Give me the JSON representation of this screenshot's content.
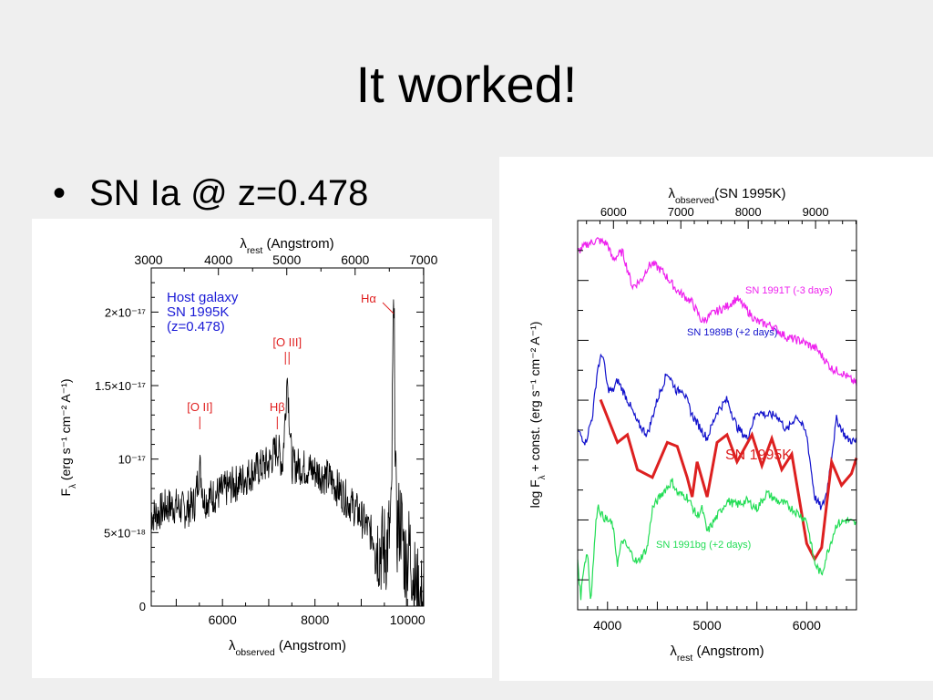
{
  "slide": {
    "title": "It worked!",
    "bullet_marker": "•",
    "bullet_text": "SN Ia @ z=0.478"
  },
  "chart_data": [
    {
      "type": "line",
      "top_axis": {
        "label_main": "λ",
        "label_sub": "rest",
        "label_rest": " (Angstrom)",
        "ticks": [
          3000,
          4000,
          5000,
          6000,
          7000
        ]
      },
      "x_axis": {
        "label_main": "λ",
        "label_sub": "observed",
        "label_rest": " (Angstrom)",
        "ticks": [
          6000,
          8000,
          10000
        ],
        "range": [
          4460,
          10350
        ]
      },
      "y_axis": {
        "label_main": "F",
        "label_sub": "λ",
        "label_rest": " (erg s⁻¹ cm⁻² A⁻¹)",
        "ticks": [
          {
            "value": 0,
            "label": "0"
          },
          {
            "value": 5e-18,
            "label": "5×10⁻¹⁸"
          },
          {
            "value": 1e-17,
            "label": "10⁻¹⁷"
          },
          {
            "value": 1.5e-17,
            "label": "1.5×10⁻¹⁷"
          },
          {
            "value": 2e-17,
            "label": "2×10⁻¹⁷"
          }
        ],
        "range": [
          0,
          2.3e-17
        ]
      },
      "legend": {
        "lines": [
          "Host galaxy",
          "SN 1995K",
          "(z=0.478)"
        ],
        "color": "#1a1ad6"
      },
      "annotations": [
        {
          "label": "[O II]",
          "x": 5510,
          "color": "#e02020"
        },
        {
          "label": "Hβ",
          "x": 7185,
          "color": "#e02020"
        },
        {
          "label": "[O III]",
          "x": 7400,
          "color": "#e02020"
        },
        {
          "label": "Hα",
          "x": 9700,
          "color": "#e02020"
        }
      ],
      "series": [
        {
          "color": "#000000",
          "points": [
            [
              4460,
              6.2e-18
            ],
            [
              4600,
              6.3e-18
            ],
            [
              4800,
              6.8e-18
            ],
            [
              5000,
              6.8e-18
            ],
            [
              5200,
              6.5e-18
            ],
            [
              5400,
              7e-18
            ],
            [
              5510,
              9.5e-18
            ],
            [
              5600,
              7.2e-18
            ],
            [
              5800,
              7.5e-18
            ],
            [
              6000,
              7.8e-18
            ],
            [
              6200,
              8.2e-18
            ],
            [
              6400,
              8.5e-18
            ],
            [
              6600,
              9e-18
            ],
            [
              6800,
              9.4e-18
            ],
            [
              7000,
              9.7e-18
            ],
            [
              7185,
              1.08e-17
            ],
            [
              7300,
              9.6e-18
            ],
            [
              7400,
              1.57e-17
            ],
            [
              7500,
              9.6e-18
            ],
            [
              7700,
              9.5e-18
            ],
            [
              7900,
              9.3e-18
            ],
            [
              8100,
              9e-18
            ],
            [
              8300,
              8.7e-18
            ],
            [
              8500,
              8e-18
            ],
            [
              8700,
              7.2e-18
            ],
            [
              8900,
              6.5e-18
            ],
            [
              9100,
              5.5e-18
            ],
            [
              9300,
              4.5e-18
            ],
            [
              9450,
              3.8e-18
            ],
            [
              9550,
              4e-18
            ],
            [
              9650,
              5.5e-18
            ],
            [
              9700,
              2.15e-17
            ],
            [
              9760,
              5e-18
            ],
            [
              9850,
              6e-18
            ],
            [
              9950,
              3e-18
            ],
            [
              10050,
              4e-18
            ],
            [
              10150,
              1.5e-18
            ],
            [
              10250,
              5e-19
            ],
            [
              10350,
              2e-19
            ]
          ]
        }
      ]
    },
    {
      "type": "line",
      "top_axis": {
        "label_main": "λ",
        "label_sub": "observed",
        "label_rest": "(SN 1995K)",
        "ticks": [
          6000,
          7000,
          8000,
          9000
        ]
      },
      "x_axis": {
        "label_main": "λ",
        "label_sub": "rest",
        "label_rest": " (Angstrom)",
        "ticks": [
          4000,
          5000,
          6000
        ],
        "range": [
          3700,
          6500
        ]
      },
      "y_axis": {
        "label_main": "log F",
        "label_sub": "λ",
        "label_rest": " + const. (erg s⁻¹ cm⁻² A⁻¹)",
        "range": [
          0,
          10
        ]
      },
      "series": [
        {
          "name": "SN 1991T (-3 days)",
          "color": "#ee22ee",
          "points": [
            [
              3700,
              9.2
            ],
            [
              3800,
              9.4
            ],
            [
              3900,
              9.5
            ],
            [
              4000,
              9.4
            ],
            [
              4050,
              9.0
            ],
            [
              4150,
              9.2
            ],
            [
              4250,
              8.3
            ],
            [
              4350,
              8.5
            ],
            [
              4400,
              8.8
            ],
            [
              4450,
              8.9
            ],
            [
              4550,
              8.7
            ],
            [
              4700,
              8.2
            ],
            [
              4850,
              7.9
            ],
            [
              4950,
              7.4
            ],
            [
              5050,
              7.6
            ],
            [
              5200,
              7.8
            ],
            [
              5300,
              8.0
            ],
            [
              5400,
              7.7
            ],
            [
              5500,
              7.4
            ],
            [
              5650,
              7.3
            ],
            [
              5800,
              7.0
            ],
            [
              5950,
              6.9
            ],
            [
              6100,
              6.7
            ],
            [
              6250,
              6.2
            ],
            [
              6350,
              6.1
            ],
            [
              6500,
              5.8
            ]
          ]
        },
        {
          "name": "SN 1989B (+2 days)",
          "color": "#1111cc",
          "points": [
            [
              3700,
              4.6
            ],
            [
              3780,
              4.3
            ],
            [
              3850,
              5.0
            ],
            [
              3900,
              6.2
            ],
            [
              3950,
              6.6
            ],
            [
              4000,
              5.7
            ],
            [
              4050,
              5.6
            ],
            [
              4100,
              5.9
            ],
            [
              4200,
              5.4
            ],
            [
              4300,
              4.8
            ],
            [
              4400,
              4.5
            ],
            [
              4500,
              5.4
            ],
            [
              4600,
              6.1
            ],
            [
              4700,
              5.6
            ],
            [
              4750,
              5.7
            ],
            [
              4850,
              5.0
            ],
            [
              5000,
              4.4
            ],
            [
              5100,
              5.1
            ],
            [
              5200,
              5.4
            ],
            [
              5300,
              4.7
            ],
            [
              5400,
              4.4
            ],
            [
              5500,
              5.1
            ],
            [
              5600,
              5.0
            ],
            [
              5700,
              5.0
            ],
            [
              5800,
              4.6
            ],
            [
              5900,
              5.0
            ],
            [
              6000,
              4.5
            ],
            [
              6080,
              2.9
            ],
            [
              6150,
              2.6
            ],
            [
              6200,
              3.0
            ],
            [
              6300,
              4.9
            ],
            [
              6400,
              4.4
            ],
            [
              6500,
              4.3
            ]
          ]
        },
        {
          "name": "SN 1995K",
          "color": "#dd2020",
          "points": [
            [
              3930,
              5.4
            ],
            [
              4100,
              4.3
            ],
            [
              4200,
              4.5
            ],
            [
              4300,
              3.6
            ],
            [
              4450,
              3.4
            ],
            [
              4600,
              4.3
            ],
            [
              4700,
              4.2
            ],
            [
              4800,
              3.4
            ],
            [
              4850,
              2.9
            ],
            [
              4900,
              3.8
            ],
            [
              5000,
              2.9
            ],
            [
              5100,
              4.3
            ],
            [
              5200,
              4.5
            ],
            [
              5300,
              3.8
            ],
            [
              5450,
              4.5
            ],
            [
              5550,
              3.7
            ],
            [
              5650,
              4.4
            ],
            [
              5750,
              3.6
            ],
            [
              5850,
              4.0
            ],
            [
              6000,
              1.7
            ],
            [
              6080,
              1.3
            ],
            [
              6150,
              1.6
            ],
            [
              6250,
              3.8
            ],
            [
              6350,
              3.2
            ],
            [
              6450,
              3.5
            ],
            [
              6500,
              3.9
            ]
          ]
        },
        {
          "name": "SN 1991bg (+2 days)",
          "color": "#22dd55",
          "points": [
            [
              3700,
              1.3
            ],
            [
              3730,
              0.3
            ],
            [
              3760,
              1.1
            ],
            [
              3800,
              1.5
            ],
            [
              3830,
              0.2
            ],
            [
              3880,
              2.1
            ],
            [
              3900,
              2.7
            ],
            [
              3950,
              2.4
            ],
            [
              4050,
              2.2
            ],
            [
              4100,
              1.2
            ],
            [
              4150,
              1.8
            ],
            [
              4200,
              1.6
            ],
            [
              4300,
              1.2
            ],
            [
              4400,
              1.6
            ],
            [
              4450,
              2.6
            ],
            [
              4550,
              3.0
            ],
            [
              4650,
              3.3
            ],
            [
              4700,
              3.0
            ],
            [
              4800,
              2.9
            ],
            [
              4900,
              2.4
            ],
            [
              4950,
              2.6
            ],
            [
              5000,
              2.0
            ],
            [
              5100,
              2.4
            ],
            [
              5200,
              2.8
            ],
            [
              5300,
              2.7
            ],
            [
              5400,
              2.8
            ],
            [
              5500,
              2.6
            ],
            [
              5600,
              3.0
            ],
            [
              5700,
              2.8
            ],
            [
              5800,
              2.7
            ],
            [
              5900,
              2.5
            ],
            [
              6000,
              2.3
            ],
            [
              6080,
              1.2
            ],
            [
              6150,
              0.9
            ],
            [
              6200,
              1.4
            ],
            [
              6300,
              2.2
            ],
            [
              6400,
              2.3
            ],
            [
              6500,
              2.2
            ]
          ]
        }
      ]
    }
  ]
}
